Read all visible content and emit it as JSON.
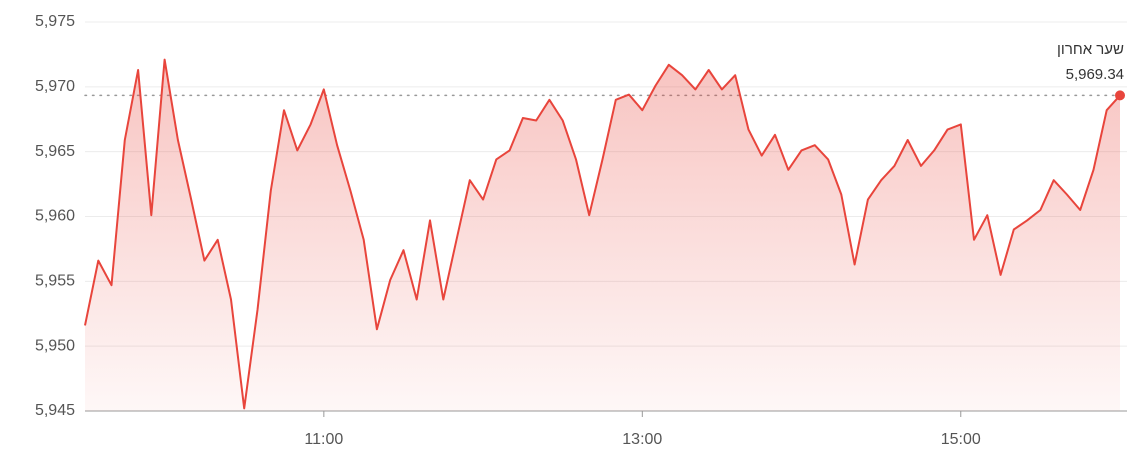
{
  "chart_data": {
    "type": "line",
    "x": [
      "09:30",
      "09:35",
      "09:40",
      "09:45",
      "09:50",
      "09:55",
      "10:00",
      "10:05",
      "10:10",
      "10:15",
      "10:20",
      "10:25",
      "10:30",
      "10:35",
      "10:40",
      "10:45",
      "10:50",
      "10:55",
      "11:00",
      "11:05",
      "11:10",
      "11:15",
      "11:20",
      "11:25",
      "11:30",
      "11:35",
      "11:40",
      "11:45",
      "11:50",
      "11:55",
      "12:00",
      "12:05",
      "12:10",
      "12:15",
      "12:20",
      "12:25",
      "12:30",
      "12:35",
      "12:40",
      "12:45",
      "12:50",
      "12:55",
      "13:00",
      "13:05",
      "13:10",
      "13:15",
      "13:20",
      "13:25",
      "13:30",
      "13:35",
      "13:40",
      "13:45",
      "13:50",
      "13:55",
      "14:00",
      "14:05",
      "14:10",
      "14:15",
      "14:20",
      "14:25",
      "14:30",
      "14:35",
      "14:40",
      "14:45",
      "14:50",
      "14:55",
      "15:00",
      "15:05",
      "15:10",
      "15:15",
      "15:20",
      "15:25",
      "15:30",
      "15:35",
      "15:40",
      "15:45",
      "15:50",
      "15:55",
      "16:00"
    ],
    "series": [
      {
        "color": "#e8453c",
        "values": [
          5951.6,
          5956.6,
          5954.7,
          5965.9,
          5971.3,
          5960.1,
          5972.1,
          5965.9,
          5961.3,
          5956.6,
          5958.2,
          5953.6,
          5945.2,
          5952.8,
          5962.0,
          5968.2,
          5965.1,
          5967.1,
          5969.8,
          5965.5,
          5962.0,
          5958.2,
          5951.3,
          5955.1,
          5957.4,
          5953.6,
          5959.7,
          5953.6,
          5958.2,
          5962.8,
          5961.3,
          5964.4,
          5965.1,
          5967.6,
          5967.4,
          5969.0,
          5967.4,
          5964.4,
          5960.1,
          5964.4,
          5969.0,
          5969.4,
          5968.2,
          5970.1,
          5971.7,
          5970.9,
          5969.8,
          5971.3,
          5969.8,
          5970.9,
          5966.7,
          5964.7,
          5966.3,
          5963.6,
          5965.1,
          5965.5,
          5964.4,
          5961.7,
          5956.3,
          5961.3,
          5962.8,
          5963.9,
          5965.9,
          5963.9,
          5965.1,
          5966.7,
          5967.1,
          5958.2,
          5960.1,
          5955.5,
          5959.0,
          5959.7,
          5960.5,
          5962.8,
          5961.7,
          5960.5,
          5963.6,
          5968.2,
          5969.34
        ]
      }
    ],
    "xlim": [
      "09:30",
      "16:00"
    ],
    "xticks": [
      "11:00",
      "13:00",
      "15:00"
    ],
    "ylim": [
      5945,
      5975
    ],
    "yticks": [
      {
        "value": 5945,
        "label": "5,945"
      },
      {
        "value": 5950,
        "label": "5,950"
      },
      {
        "value": 5955,
        "label": "5,955"
      },
      {
        "value": 5960,
        "label": "5,960"
      },
      {
        "value": 5965,
        "label": "5,965"
      },
      {
        "value": 5970,
        "label": "5,970"
      },
      {
        "value": 5975,
        "label": "5,975"
      }
    ],
    "grid": true,
    "annotation": {
      "label": "שער אחרון",
      "value": 5969.34,
      "value_label": "5,969.34"
    }
  }
}
